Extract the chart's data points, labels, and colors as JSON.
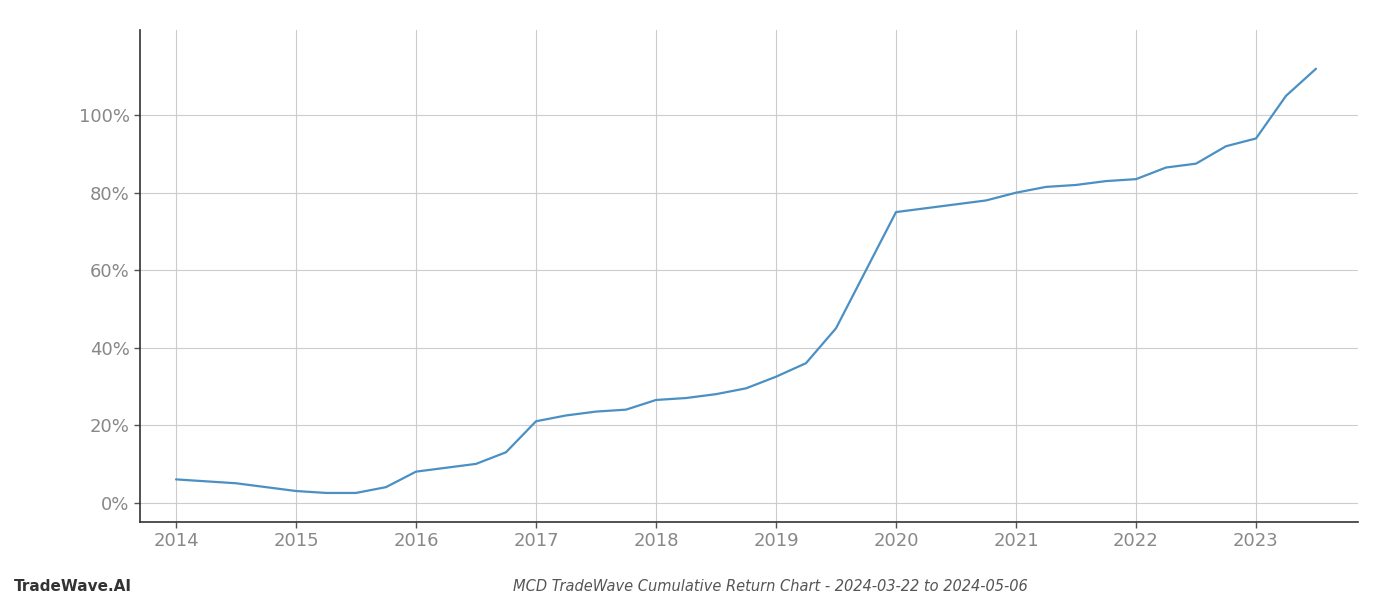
{
  "title": "MCD TradeWave Cumulative Return Chart - 2024-03-22 to 2024-05-06",
  "watermark": "TradeWave.AI",
  "line_color": "#4a90c4",
  "background_color": "#ffffff",
  "grid_color": "#cccccc",
  "x_values": [
    2014.0,
    2014.25,
    2014.5,
    2014.75,
    2015.0,
    2015.25,
    2015.5,
    2015.75,
    2016.0,
    2016.25,
    2016.5,
    2016.75,
    2017.0,
    2017.25,
    2017.5,
    2017.75,
    2018.0,
    2018.25,
    2018.5,
    2018.75,
    2019.0,
    2019.25,
    2019.5,
    2019.75,
    2020.0,
    2020.25,
    2020.5,
    2020.75,
    2021.0,
    2021.25,
    2021.5,
    2021.75,
    2022.0,
    2022.25,
    2022.5,
    2022.75,
    2023.0,
    2023.25,
    2023.5
  ],
  "y_values": [
    0.06,
    0.055,
    0.05,
    0.04,
    0.03,
    0.025,
    0.025,
    0.04,
    0.08,
    0.09,
    0.1,
    0.13,
    0.21,
    0.225,
    0.235,
    0.24,
    0.265,
    0.27,
    0.28,
    0.295,
    0.325,
    0.36,
    0.45,
    0.6,
    0.75,
    0.76,
    0.77,
    0.78,
    0.8,
    0.815,
    0.82,
    0.83,
    0.835,
    0.865,
    0.875,
    0.92,
    0.94,
    1.05,
    1.12
  ],
  "xlim": [
    2013.7,
    2023.85
  ],
  "ylim": [
    -0.05,
    1.22
  ],
  "yticks": [
    0.0,
    0.2,
    0.4,
    0.6,
    0.8,
    1.0
  ],
  "ytick_labels": [
    "0%",
    "20%",
    "40%",
    "60%",
    "80%",
    "100%"
  ],
  "xticks": [
    2014,
    2015,
    2016,
    2017,
    2018,
    2019,
    2020,
    2021,
    2022,
    2023
  ],
  "title_fontsize": 10.5,
  "watermark_fontsize": 11,
  "tick_fontsize": 13,
  "line_width": 1.6
}
